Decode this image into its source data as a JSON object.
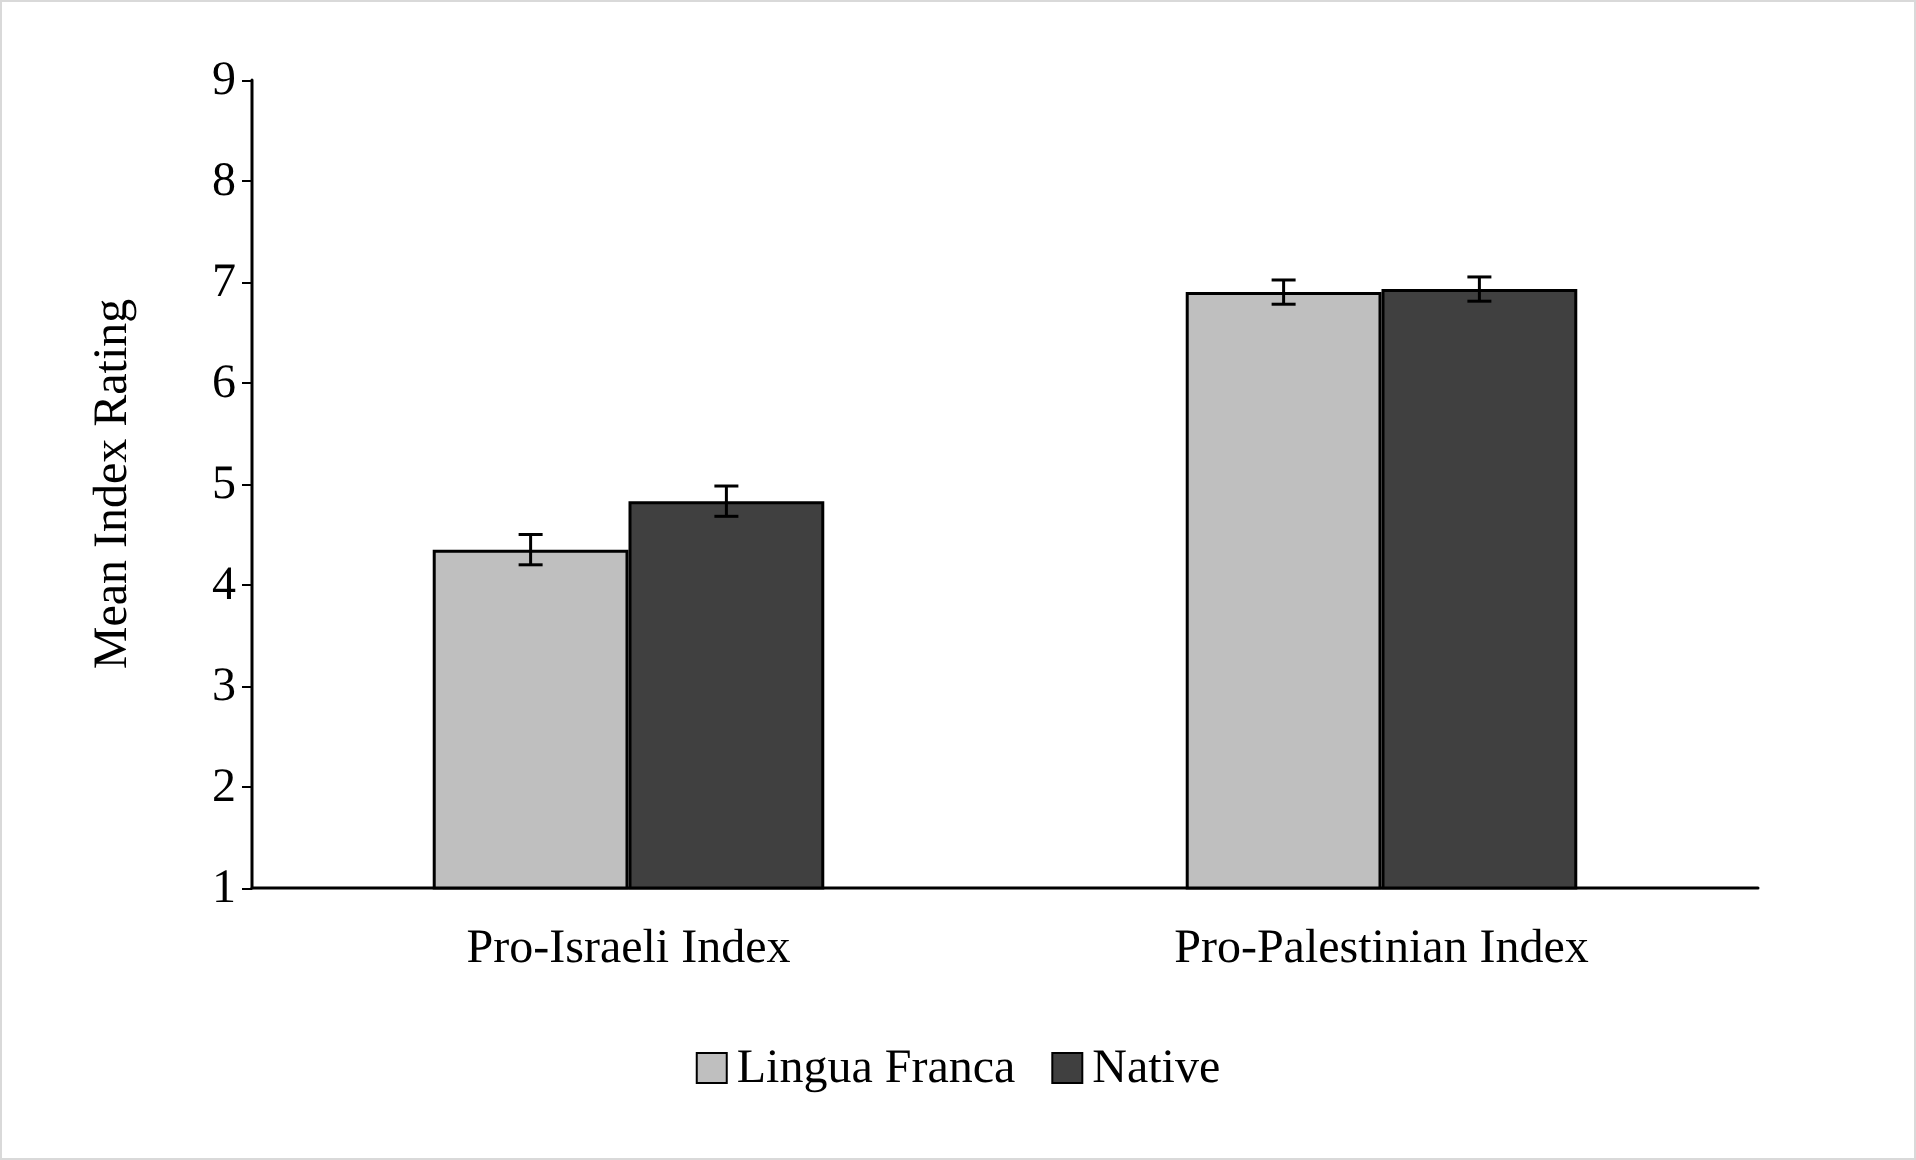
{
  "chart_data": {
    "type": "bar",
    "ylabel": "Mean Index Rating",
    "categories": [
      "Pro-Israeli Index",
      "Pro-Palestinian Index"
    ],
    "series": [
      {
        "name": "Lingua Franca",
        "color": "#bfbfbf",
        "values": [
          4.35,
          6.9
        ],
        "errors": [
          0.15,
          0.12
        ]
      },
      {
        "name": "Native",
        "color": "#404040",
        "values": [
          4.83,
          6.93
        ],
        "errors": [
          0.15,
          0.12
        ]
      }
    ],
    "ylim": [
      1,
      9
    ],
    "yticks": [
      1,
      2,
      3,
      4,
      5,
      6,
      7,
      8,
      9
    ],
    "grid": false,
    "legend": "bottom"
  }
}
